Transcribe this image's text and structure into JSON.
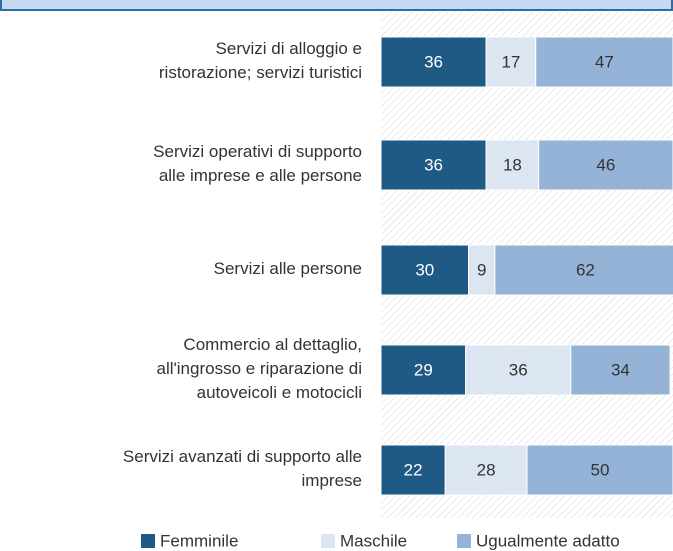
{
  "chart_data": {
    "type": "bar",
    "orientation": "horizontal",
    "stacked": true,
    "categories": [
      "Servizi di alloggio e\nristorazione; servizi turistici",
      "Servizi operativi di supporto\nalle imprese e alle persone",
      "Servizi alle persone",
      "Commercio al dettaglio,\nall'ingrosso e riparazione di\nautoveicoli e motocicli",
      "Servizi avanzati di supporto alle\nimprese"
    ],
    "series": [
      {
        "name": "Femminile",
        "color": "#1f5a85",
        "values": [
          36,
          36,
          30,
          29,
          22
        ]
      },
      {
        "name": "Maschile",
        "color": "#dce6f2",
        "values": [
          17,
          18,
          9,
          36,
          28
        ]
      },
      {
        "name": "Ugualmente adatto",
        "color": "#95b3d7",
        "values": [
          47,
          46,
          62,
          34,
          50
        ]
      }
    ],
    "xlim": [
      0,
      100
    ],
    "legend": "bottom"
  }
}
